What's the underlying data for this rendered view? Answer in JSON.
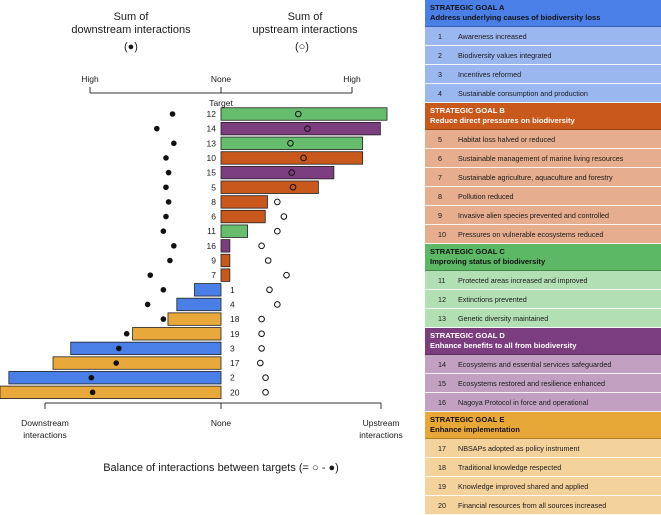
{
  "chart_data": {
    "type": "bar",
    "orientation": "horizontal",
    "header": {
      "downstream_title_line1": "Sum of",
      "downstream_title_line2": "downstream interactions",
      "downstream_marker": "(●)",
      "upstream_title_line1": "Sum of",
      "upstream_title_line2": "upstream interactions",
      "upstream_marker": "(○)",
      "scale_high_left": "High",
      "scale_none": "None",
      "scale_high_right": "High",
      "target_column_label": "Target"
    },
    "bottom_axis": {
      "left_label_line1": "Downstream",
      "left_label_line2": "interactions",
      "center_label": "None",
      "right_label_line1": "Upstream",
      "right_label_line2": "interactions",
      "range": [
        -100,
        75
      ],
      "title": "Balance of interactions between targets (= ○ - ●)"
    },
    "scale_range": [
      0,
      100
    ],
    "goal_colors": {
      "A": "#4a7fe8",
      "B": "#c8581c",
      "C": "#5cb865",
      "D": "#7b3d7e",
      "E": "#e8a838"
    },
    "bar_fill": {
      "A": "#4a7fe8",
      "B": "#c8581c",
      "C": "#66bd6d",
      "D": "#7c3e7f",
      "E": "#e9a83a"
    },
    "rows": [
      {
        "target": "12",
        "goal": "C",
        "balance": 75,
        "downstream": 37,
        "upstream": 59
      },
      {
        "target": "14",
        "goal": "D",
        "balance": 72,
        "downstream": 49,
        "upstream": 66
      },
      {
        "target": "13",
        "goal": "C",
        "balance": 64,
        "downstream": 36,
        "upstream": 53
      },
      {
        "target": "10",
        "goal": "B",
        "balance": 64,
        "downstream": 42,
        "upstream": 63
      },
      {
        "target": "15",
        "goal": "D",
        "balance": 51,
        "downstream": 40,
        "upstream": 54
      },
      {
        "target": "5",
        "goal": "B",
        "balance": 44,
        "downstream": 42,
        "upstream": 55
      },
      {
        "target": "8",
        "goal": "B",
        "balance": 21,
        "downstream": 40,
        "upstream": 43
      },
      {
        "target": "6",
        "goal": "B",
        "balance": 20,
        "downstream": 42,
        "upstream": 48
      },
      {
        "target": "11",
        "goal": "C",
        "balance": 12,
        "downstream": 44,
        "upstream": 43
      },
      {
        "target": "16",
        "goal": "D",
        "balance": 4,
        "downstream": 36,
        "upstream": 31
      },
      {
        "target": "9",
        "goal": "B",
        "balance": 4,
        "downstream": 39,
        "upstream": 36
      },
      {
        "target": "7",
        "goal": "B",
        "balance": 4,
        "downstream": 54,
        "upstream": 50
      },
      {
        "target": "1",
        "goal": "A",
        "balance": -12,
        "downstream": 44,
        "upstream": 37
      },
      {
        "target": "4",
        "goal": "A",
        "balance": -20,
        "downstream": 56,
        "upstream": 43
      },
      {
        "target": "18",
        "goal": "E",
        "balance": -24,
        "downstream": 44,
        "upstream": 31
      },
      {
        "target": "19",
        "goal": "E",
        "balance": -40,
        "downstream": 72,
        "upstream": 31
      },
      {
        "target": "3",
        "goal": "A",
        "balance": -68,
        "downstream": 78,
        "upstream": 31
      },
      {
        "target": "17",
        "goal": "E",
        "balance": -76,
        "downstream": 80,
        "upstream": 30
      },
      {
        "target": "2",
        "goal": "A",
        "balance": -96,
        "downstream": 99,
        "upstream": 34
      },
      {
        "target": "20",
        "goal": "E",
        "balance": -100,
        "downstream": 98,
        "upstream": 34
      }
    ]
  },
  "legend": {
    "goals": [
      {
        "key": "A",
        "title": "STRATEGIC GOAL A",
        "subtitle": "Address underlying causes of biodiversity loss",
        "header_color": "#4a7fe8",
        "row_color": "#9bb7f0",
        "items": [
          {
            "num": "1",
            "label": "Awareness increased"
          },
          {
            "num": "2",
            "label": "Biodiversity values integrated"
          },
          {
            "num": "3",
            "label": "Incentives reformed"
          },
          {
            "num": "4",
            "label": "Sustainable consumption and production"
          }
        ]
      },
      {
        "key": "B",
        "title": "STRATEGIC GOAL B",
        "subtitle": "Reduce direct pressures on biodiversity",
        "header_color": "#c8581c",
        "row_color": "#e6ad8e",
        "items": [
          {
            "num": "5",
            "label": "Habitat loss halved or reduced"
          },
          {
            "num": "6",
            "label": "Sustainable management of marine living resources"
          },
          {
            "num": "7",
            "label": "Sustainable agriculture, aquaculture and forestry"
          },
          {
            "num": "8",
            "label": "Pollution reduced"
          },
          {
            "num": "9",
            "label": "Invasive alien species prevented and controlled"
          },
          {
            "num": "10",
            "label": "Pressures on vulnerable ecosystems reduced"
          }
        ]
      },
      {
        "key": "C",
        "title": "STRATEGIC GOAL C",
        "subtitle": "Improving status of biodiversity",
        "header_color": "#5cb865",
        "row_color": "#b3dfb4",
        "items": [
          {
            "num": "11",
            "label": "Protected areas increased and improved"
          },
          {
            "num": "12",
            "label": "Extinctions prevented"
          },
          {
            "num": "13",
            "label": "Genetic diversity maintained"
          }
        ]
      },
      {
        "key": "D",
        "title": "STRATEGIC GOAL D",
        "subtitle": "Enhance benefits to all from biodiversity",
        "header_color": "#7b3d7e",
        "row_color": "#c1a0c2",
        "items": [
          {
            "num": "14",
            "label": "Ecosystems and essential services safeguarded"
          },
          {
            "num": "15",
            "label": "Ecosystems restored and resilience enhanced"
          },
          {
            "num": "16",
            "label": "Nagoya Protocol in force and operational"
          }
        ]
      },
      {
        "key": "E",
        "title": "STRATEGIC GOAL E",
        "subtitle": "Enhance implementation",
        "header_color": "#e8a838",
        "row_color": "#f3d29c",
        "items": [
          {
            "num": "17",
            "label": "NBSAPs adopted as policy instrument"
          },
          {
            "num": "18",
            "label": "Traditional knowledge respected"
          },
          {
            "num": "19",
            "label": "Knowledge improved shared and applied"
          },
          {
            "num": "20",
            "label": "Financial resources from all sources increased"
          }
        ]
      }
    ]
  }
}
